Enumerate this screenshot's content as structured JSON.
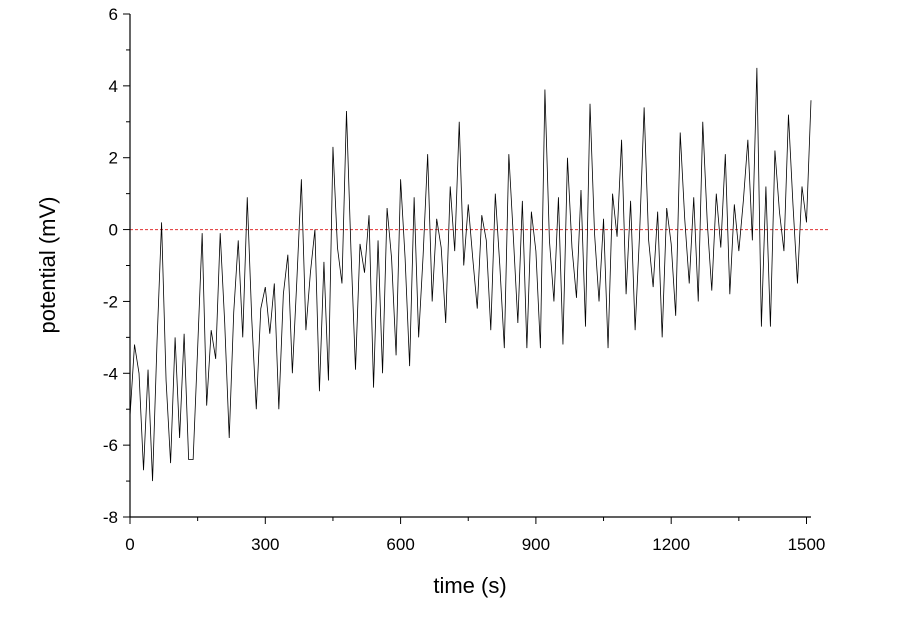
{
  "chart_data": {
    "type": "line",
    "xlabel": "time (s)",
    "ylabel": "potential (mV)",
    "xlim": [
      0,
      1510
    ],
    "ylim": [
      -8,
      6
    ],
    "xticks": [
      0,
      300,
      600,
      900,
      1200,
      1500
    ],
    "xminorticks": [
      150,
      450,
      750,
      1050,
      1350
    ],
    "yticks": [
      -8,
      -6,
      -4,
      -2,
      0,
      2,
      4,
      6
    ],
    "yminorticks": [
      -7,
      -5,
      -3,
      -1,
      1,
      3,
      5
    ],
    "reference_line": {
      "y": 0,
      "color": "#e03030"
    },
    "series": [
      {
        "color": "#000000",
        "x": [
          0,
          10,
          20,
          30,
          40,
          50,
          60,
          70,
          80,
          90,
          100,
          110,
          120,
          130,
          140,
          150,
          160,
          170,
          180,
          190,
          200,
          210,
          220,
          230,
          240,
          250,
          260,
          270,
          280,
          290,
          300,
          310,
          320,
          330,
          340,
          350,
          360,
          370,
          380,
          390,
          400,
          410,
          420,
          430,
          440,
          450,
          460,
          470,
          480,
          490,
          500,
          510,
          520,
          530,
          540,
          550,
          560,
          570,
          580,
          590,
          600,
          610,
          620,
          630,
          640,
          650,
          660,
          670,
          680,
          690,
          700,
          710,
          720,
          730,
          740,
          750,
          760,
          770,
          780,
          790,
          800,
          810,
          820,
          830,
          840,
          850,
          860,
          870,
          880,
          890,
          900,
          910,
          920,
          930,
          940,
          950,
          960,
          970,
          980,
          990,
          1000,
          1010,
          1020,
          1030,
          1040,
          1050,
          1060,
          1070,
          1080,
          1090,
          1100,
          1110,
          1120,
          1130,
          1140,
          1150,
          1160,
          1170,
          1180,
          1190,
          1200,
          1210,
          1220,
          1230,
          1240,
          1250,
          1260,
          1270,
          1280,
          1290,
          1300,
          1310,
          1320,
          1330,
          1340,
          1350,
          1360,
          1370,
          1380,
          1390,
          1400,
          1410,
          1420,
          1430,
          1440,
          1450,
          1460,
          1470,
          1480,
          1490,
          1500,
          1510
        ],
        "values": [
          -5.2,
          -3.2,
          -4.0,
          -6.7,
          -3.9,
          -7.0,
          -3.1,
          0.2,
          -4.2,
          -6.5,
          -3.0,
          -5.8,
          -2.9,
          -6.4,
          -6.4,
          -3.3,
          -0.1,
          -4.9,
          -2.8,
          -3.6,
          -0.1,
          -2.6,
          -5.8,
          -2.3,
          -0.3,
          -3.0,
          0.9,
          -2.5,
          -5.0,
          -2.2,
          -1.6,
          -2.9,
          -1.5,
          -5.0,
          -1.8,
          -0.7,
          -4.0,
          -1.4,
          1.4,
          -2.8,
          -1.2,
          0.0,
          -4.5,
          -0.9,
          -4.2,
          2.3,
          -0.5,
          -1.5,
          3.3,
          -0.6,
          -3.9,
          -0.4,
          -1.2,
          0.4,
          -4.4,
          -0.3,
          -4.0,
          0.6,
          -0.8,
          -3.5,
          1.4,
          -0.8,
          -3.8,
          0.9,
          -3.0,
          -0.7,
          2.1,
          -2.0,
          0.3,
          -0.5,
          -2.6,
          1.2,
          -0.6,
          3.0,
          -1.0,
          0.7,
          -0.8,
          -2.2,
          0.4,
          -0.3,
          -2.8,
          1.0,
          -1.0,
          -3.3,
          2.1,
          -0.2,
          -2.6,
          0.8,
          -3.3,
          0.5,
          -0.6,
          -3.3,
          3.9,
          -0.3,
          -2.0,
          0.9,
          -3.2,
          2.0,
          -0.5,
          -1.9,
          1.1,
          -2.7,
          3.5,
          -0.1,
          -2.0,
          0.3,
          -3.3,
          1.0,
          -0.2,
          2.5,
          -1.8,
          0.8,
          -2.8,
          -0.1,
          3.4,
          -0.3,
          -1.6,
          0.5,
          -3.0,
          0.6,
          -0.4,
          -2.4,
          2.7,
          0.3,
          -1.5,
          0.9,
          -2.0,
          3.0,
          0.2,
          -1.7,
          1.0,
          -0.5,
          2.1,
          -1.8,
          0.7,
          -0.6,
          0.8,
          2.5,
          -0.3,
          4.5,
          -2.7,
          1.2,
          -2.7,
          2.2,
          0.5,
          -0.6,
          3.2,
          0.7,
          -1.5,
          1.2,
          0.2,
          3.6
        ]
      }
    ]
  }
}
